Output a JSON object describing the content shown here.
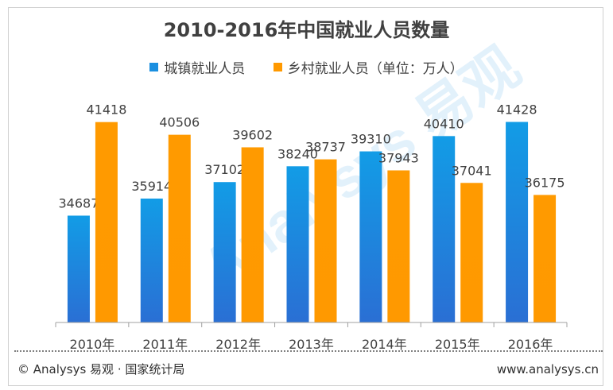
{
  "title": "2010-2016年中国就业人员数量",
  "legend": {
    "series1": "城镇就业人员",
    "series2": "乡村就业人员（单位：万人）"
  },
  "footer": {
    "source": "© Analysys 易观 · 国家统计局",
    "url": "www.analysys.cn"
  },
  "watermark": "Analysys 易观",
  "colors": {
    "urban": "#1a8fe0",
    "rural": "#ff9900"
  },
  "chart_data": {
    "type": "bar",
    "title": "2010-2016年中国就业人员数量",
    "xlabel": "",
    "ylabel": "",
    "ylim": [
      27000,
      42000
    ],
    "grid": false,
    "legend_position": "top",
    "categories": [
      "2010年",
      "2011年",
      "2012年",
      "2013年",
      "2014年",
      "2015年",
      "2016年"
    ],
    "series": [
      {
        "name": "城镇就业人员",
        "values": [
          34687,
          35914,
          37102,
          38240,
          39310,
          40410,
          41428
        ]
      },
      {
        "name": "乡村就业人员（单位：万人）",
        "values": [
          41418,
          40506,
          39602,
          38737,
          37943,
          37041,
          36175
        ]
      }
    ]
  }
}
